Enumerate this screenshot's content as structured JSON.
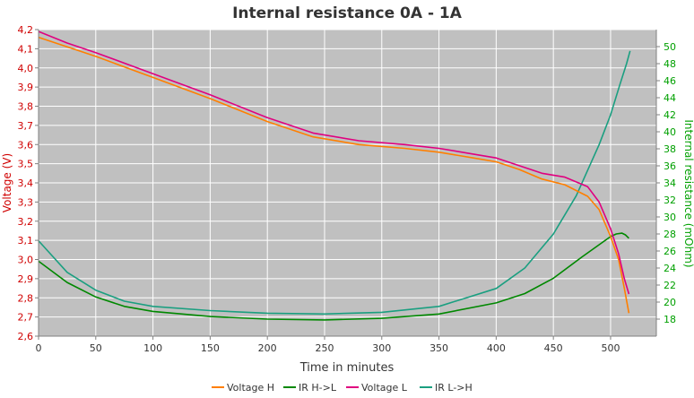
{
  "chart_data": {
    "type": "line",
    "title": "Internal resistance  0A - 1A",
    "xlabel": "Time in minutes",
    "ylabel_left": "Voltage (V)",
    "ylabel_right": "Internal resistance (mOhm)",
    "xlim": [
      0,
      540
    ],
    "ylim_left": [
      2.6,
      4.2
    ],
    "ylim_right": [
      16,
      52
    ],
    "x_ticks": [
      "0",
      "50",
      "100",
      "150",
      "200",
      "250",
      "300",
      "350",
      "400",
      "450",
      "500"
    ],
    "y_left_ticks": [
      "2,6",
      "2,7",
      "2,8",
      "2,9",
      "3,0",
      "3,1",
      "3,2",
      "3,3",
      "3,4",
      "3,5",
      "3,6",
      "3,7",
      "3,8",
      "3,9",
      "4,0",
      "4,1",
      "4,2"
    ],
    "y_right_ticks": [
      "18",
      "20",
      "22",
      "24",
      "26",
      "28",
      "30",
      "32",
      "34",
      "36",
      "38",
      "40",
      "42",
      "44",
      "46",
      "48",
      "50"
    ],
    "grid": true,
    "legend_position": "bottom",
    "colors": {
      "plot_background": "#c0c0c0",
      "grid": "#ffffff",
      "left_axis": "#d00000",
      "right_axis": "#00a000"
    },
    "series": [
      {
        "name": "Voltage H",
        "axis": "left",
        "color": "#ff7f00",
        "x": [
          0,
          25,
          50,
          100,
          150,
          200,
          240,
          280,
          320,
          350,
          380,
          400,
          420,
          440,
          460,
          480,
          490,
          500,
          507,
          512,
          516
        ],
        "values": [
          4.16,
          4.11,
          4.06,
          3.95,
          3.84,
          3.72,
          3.64,
          3.6,
          3.58,
          3.56,
          3.53,
          3.51,
          3.47,
          3.42,
          3.39,
          3.33,
          3.26,
          3.12,
          3.0,
          2.85,
          2.72
        ]
      },
      {
        "name": "IR H->L",
        "axis": "right",
        "color": "#008800",
        "x": [
          0,
          25,
          50,
          75,
          100,
          150,
          200,
          250,
          300,
          350,
          400,
          425,
          450,
          475,
          500,
          505,
          510,
          513,
          516
        ],
        "values": [
          24.8,
          22.3,
          20.6,
          19.5,
          18.9,
          18.3,
          18.0,
          17.9,
          18.1,
          18.6,
          19.9,
          21.0,
          22.8,
          25.3,
          27.7,
          28.0,
          28.1,
          27.9,
          27.5
        ]
      },
      {
        "name": "Voltage L",
        "axis": "left",
        "color": "#e0007f",
        "x": [
          0,
          25,
          50,
          100,
          150,
          200,
          240,
          280,
          320,
          350,
          380,
          400,
          420,
          440,
          460,
          480,
          490,
          500,
          507,
          512,
          516
        ],
        "values": [
          4.19,
          4.13,
          4.08,
          3.97,
          3.86,
          3.74,
          3.66,
          3.62,
          3.6,
          3.58,
          3.55,
          3.53,
          3.49,
          3.45,
          3.43,
          3.38,
          3.3,
          3.16,
          3.03,
          2.9,
          2.82
        ]
      },
      {
        "name": "IR L->H",
        "axis": "right",
        "color": "#1a9f80",
        "x": [
          0,
          25,
          50,
          75,
          100,
          150,
          200,
          250,
          300,
          350,
          400,
          425,
          450,
          470,
          490,
          500,
          508,
          514,
          517
        ],
        "values": [
          27.2,
          23.5,
          21.4,
          20.1,
          19.5,
          19.0,
          18.7,
          18.6,
          18.8,
          19.5,
          21.6,
          24.0,
          28.0,
          32.5,
          38.5,
          42.0,
          45.5,
          48.0,
          49.5
        ]
      }
    ]
  }
}
